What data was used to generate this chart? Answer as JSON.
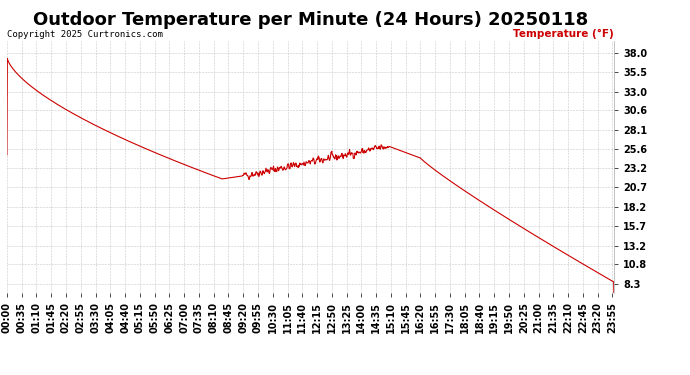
{
  "title": "Outdoor Temperature per Minute (24 Hours) 20250118",
  "copyright": "Copyright 2025 Curtronics.com",
  "legend_label": "Temperature (°F)",
  "line_color": "#cc0000",
  "legend_color": "#cc0000",
  "copyright_color": "#000000",
  "background_color": "#ffffff",
  "grid_color": "#bbbbbb",
  "yticks": [
    8.3,
    10.8,
    13.2,
    15.7,
    18.2,
    20.7,
    23.2,
    25.6,
    28.1,
    30.6,
    33.0,
    35.5,
    38.0
  ],
  "ylim": [
    7.2,
    39.5
  ],
  "title_fontsize": 13,
  "tick_fontsize": 7,
  "x_tick_interval": 35,
  "total_minutes": 1440
}
